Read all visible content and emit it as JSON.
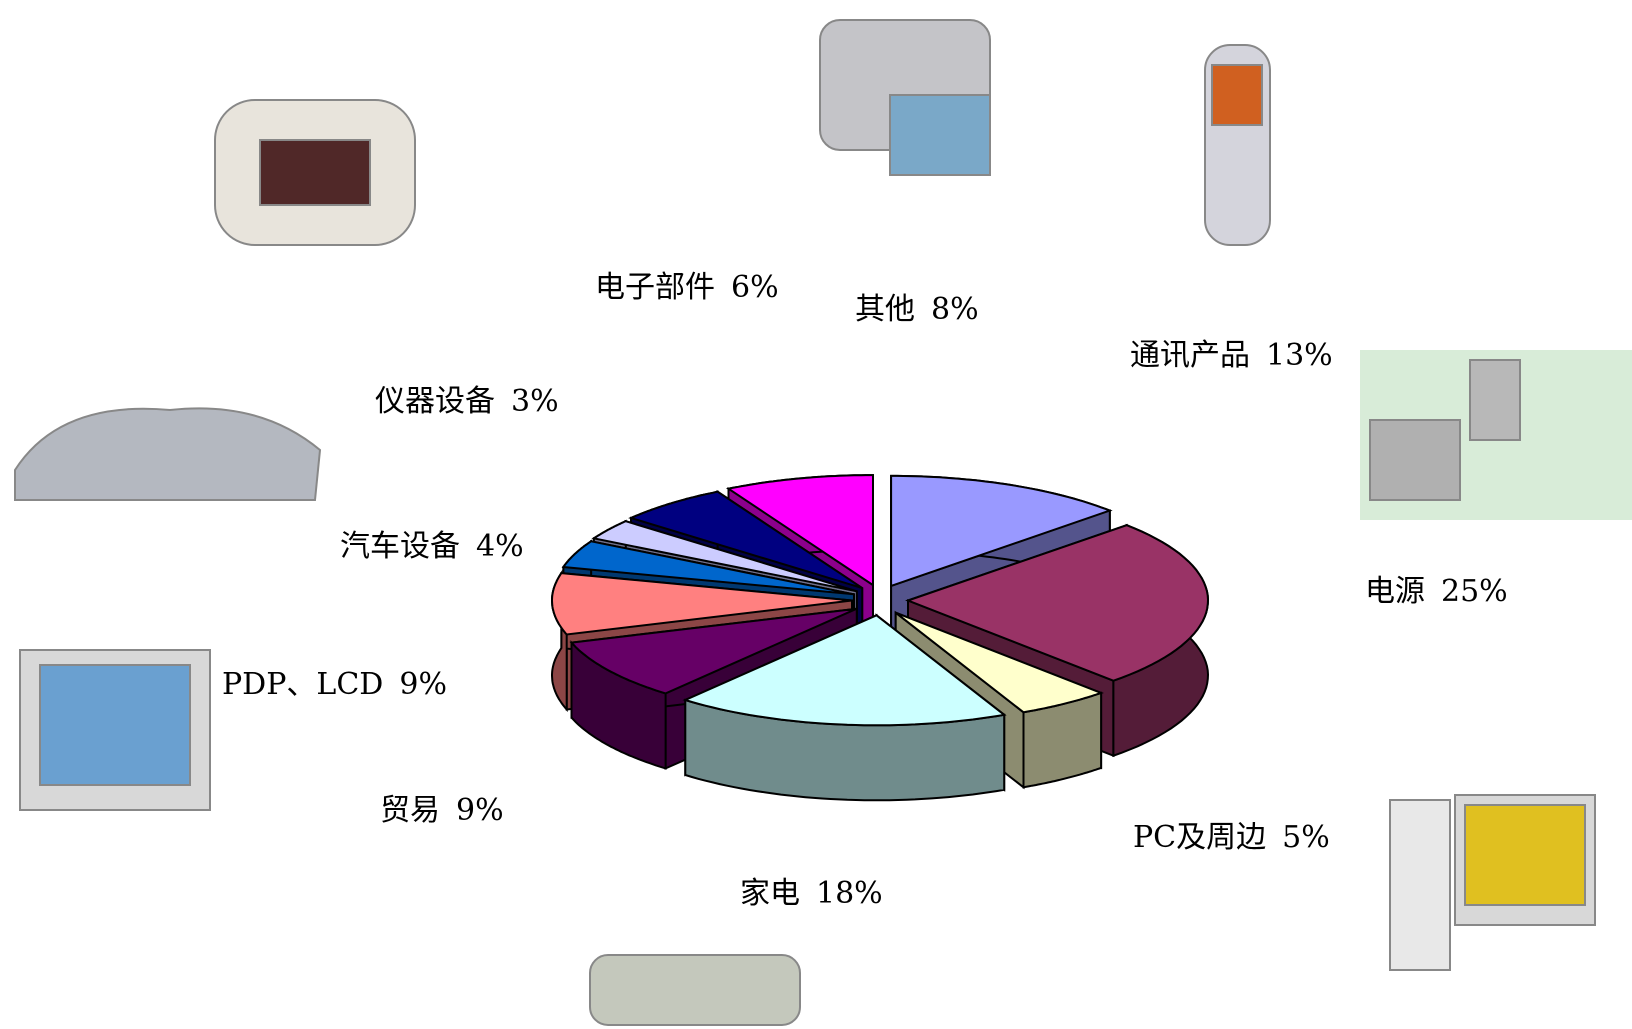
{
  "chart_data": {
    "type": "pie3d",
    "categories": [
      "通讯产品",
      "电源",
      "PC及周边",
      "家电",
      "贸易",
      "PDP、LCD",
      "汽车设备",
      "仪器设备",
      "电子部件",
      "其他"
    ],
    "values": [
      13,
      25,
      5,
      18,
      9,
      9,
      4,
      3,
      6,
      8
    ],
    "value_labels": [
      "13%",
      "25%",
      "5%",
      "18%",
      "9%",
      "9%",
      "4%",
      "3%",
      "6%",
      "8%"
    ],
    "colors": [
      "#9999ff",
      "#993366",
      "#ffffcc",
      "#ccffff",
      "#660066",
      "#ff8080",
      "#0066cc",
      "#ccccff",
      "#000080",
      "#ff00ff"
    ]
  }
}
